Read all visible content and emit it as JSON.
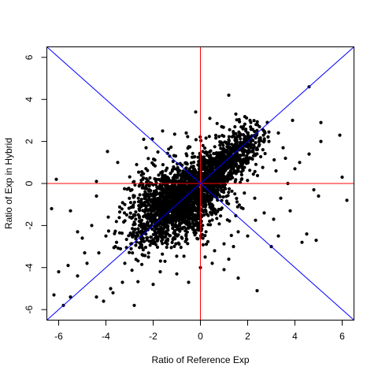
{
  "chart_data": {
    "type": "scatter",
    "title": "",
    "xlabel": "Ratio of Reference Exp",
    "ylabel": "Ratio of Exp in Hybrid",
    "xlim": [
      -6.5,
      6.5
    ],
    "ylim": [
      -6.5,
      6.5
    ],
    "x_ticks": [
      -6,
      -4,
      -2,
      0,
      2,
      4,
      6
    ],
    "y_ticks": [
      -6,
      -4,
      -2,
      0,
      2,
      4,
      6
    ],
    "x_tick_labels": [
      "-6",
      "-4",
      "-2",
      "0",
      "2",
      "4",
      "6"
    ],
    "y_tick_labels": [
      "-6",
      "-4",
      "-2",
      "0",
      "2",
      "4",
      "6"
    ],
    "point_color": "#000000",
    "reference_lines": [
      {
        "kind": "vline",
        "x": 0,
        "color": "#ff0000"
      },
      {
        "kind": "hline",
        "y": 0,
        "color": "#ff0000"
      },
      {
        "kind": "abline",
        "intercept": 0,
        "slope": 1,
        "color": "#0000ff"
      },
      {
        "kind": "abline",
        "intercept": 0,
        "slope": -1,
        "color": "#0000ff"
      }
    ],
    "points": [
      [
        4.6,
        4.6
      ],
      [
        1.2,
        4.2
      ],
      [
        3.9,
        3.0
      ],
      [
        5.1,
        2.9
      ],
      [
        5.9,
        2.3
      ],
      [
        5.1,
        2.0
      ],
      [
        6.0,
        0.3
      ],
      [
        6.2,
        -0.8
      ],
      [
        5.0,
        -0.6
      ],
      [
        4.8,
        -0.3
      ],
      [
        4.5,
        -2.4
      ],
      [
        4.3,
        -2.8
      ],
      [
        4.9,
        -2.7
      ],
      [
        3.8,
        -1.3
      ],
      [
        3.3,
        -2.5
      ],
      [
        3.0,
        -3.0
      ],
      [
        2.4,
        -5.1
      ],
      [
        1.6,
        -4.5
      ],
      [
        1.0,
        -4.1
      ],
      [
        0.5,
        -3.8
      ],
      [
        3.5,
        1.7
      ],
      [
        3.2,
        0.6
      ],
      [
        3.7,
        0.0
      ],
      [
        4.2,
        1.0
      ],
      [
        3.6,
        1.2
      ],
      [
        -6.3,
        -1.2
      ],
      [
        -6.1,
        0.2
      ],
      [
        -6.2,
        -5.3
      ],
      [
        -5.8,
        -5.8
      ],
      [
        -5.5,
        -5.4
      ],
      [
        -5.6,
        -3.9
      ],
      [
        -6.0,
        -4.2
      ],
      [
        -5.2,
        -2.3
      ],
      [
        -5.5,
        -1.3
      ],
      [
        -4.4,
        -5.4
      ],
      [
        -4.1,
        -5.6
      ],
      [
        -3.7,
        -5.2
      ],
      [
        -3.8,
        -5.0
      ],
      [
        -2.8,
        -5.8
      ],
      [
        -4.3,
        -3.3
      ],
      [
        -3.6,
        -3.0
      ],
      [
        -3.2,
        -1.0
      ],
      [
        -4.4,
        0.1
      ],
      [
        -4.4,
        -0.6
      ],
      [
        -4.6,
        -2.0
      ],
      [
        -2.7,
        0.9
      ],
      [
        -2.3,
        1.7
      ],
      [
        -2.4,
        2.1
      ],
      [
        -1.6,
        2.5
      ],
      [
        -2.9,
        -0.3
      ],
      [
        -1.8,
        1.5
      ],
      [
        -1.3,
        1.3
      ],
      [
        0.4,
        3.1
      ],
      [
        1.8,
        2.6
      ],
      [
        0.9,
        2.7
      ],
      [
        2.1,
        3.0
      ],
      [
        2.5,
        2.7
      ],
      [
        1.5,
        3.3
      ],
      [
        -0.6,
        2.4
      ],
      [
        -3.2,
        -3.8
      ],
      [
        -2.2,
        -3.5
      ],
      [
        -1.7,
        -4.2
      ],
      [
        -1.5,
        -3.7
      ],
      [
        -1.0,
        -4.3
      ],
      [
        -0.5,
        -4.7
      ],
      [
        0.0,
        -4.0
      ],
      [
        0.6,
        -3.2
      ],
      [
        1.4,
        -3.0
      ],
      [
        2.0,
        -2.5
      ],
      [
        -5.2,
        -4.4
      ],
      [
        -3.3,
        -4.7
      ],
      [
        -2.0,
        -4.8
      ],
      [
        -4.9,
        -3.3
      ],
      [
        -4.0,
        -2.5
      ],
      [
        0.2,
        -3.5
      ],
      [
        1.2,
        -3.6
      ],
      [
        3.1,
        -1.7
      ],
      [
        2.7,
        -1.4
      ],
      [
        2.3,
        -0.7
      ],
      [
        1.6,
        -2.3
      ],
      [
        4.0,
        0.7
      ],
      [
        3.4,
        -0.7
      ],
      [
        4.6,
        1.4
      ],
      [
        2.9,
        2.0
      ],
      [
        3.3,
        2.4
      ],
      [
        -0.2,
        3.4
      ],
      [
        -3.5,
        1.0
      ],
      [
        -3.9,
        -1.6
      ],
      [
        -5.0,
        -2.6
      ],
      [
        -4.8,
        -3.8
      ]
    ],
    "cluster_seed": 1337,
    "cluster_count": 2600
  }
}
